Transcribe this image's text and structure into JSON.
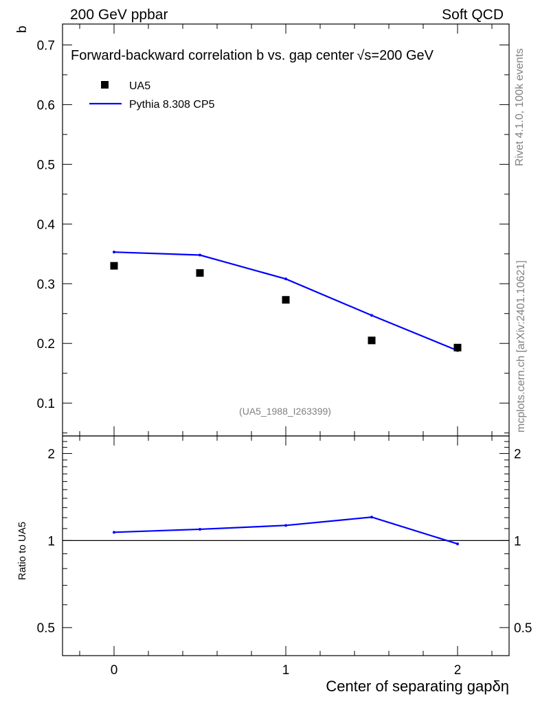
{
  "header": {
    "left": "200 GeV ppbar",
    "right": "Soft QCD"
  },
  "side_labels": {
    "rivet": "Rivet 4.1.0,  100k events",
    "mcplots": "mcplots.cern.ch [arXiv:2401.10621]"
  },
  "chart_data": [
    {
      "type": "scatter",
      "panel": "main",
      "title": "Forward-backward correlation b  vs. gap center",
      "title_extra": "√s=200 GeV",
      "ylabel": "b",
      "xlabel": "",
      "xlim": [
        -0.3,
        2.3
      ],
      "ylim": [
        0.045,
        0.735
      ],
      "yticks": [
        0.1,
        0.2,
        0.3,
        0.4,
        0.5,
        0.6,
        0.7
      ],
      "ytick_labels": [
        "0.1",
        "0.2",
        "0.3",
        "0.4",
        "0.5",
        "0.6",
        "0.7"
      ],
      "annotation": "(UA5_1988_I263399)",
      "legend_position": "top-left",
      "series": [
        {
          "name": "UA5",
          "kind": "markers",
          "color": "#000000",
          "x": [
            0,
            0.5,
            1,
            1.5,
            2
          ],
          "y": [
            0.33,
            0.318,
            0.273,
            0.205,
            0.193
          ]
        },
        {
          "name": "Pythia 8.308 CP5",
          "kind": "line",
          "color": "#0000ff",
          "x": [
            0,
            0.5,
            1,
            1.5,
            2
          ],
          "y": [
            0.353,
            0.348,
            0.308,
            0.247,
            0.188
          ]
        }
      ]
    },
    {
      "type": "line",
      "panel": "ratio",
      "ylabel": "Ratio to UA5",
      "xlabel": "Center of separating gapδη",
      "xlim": [
        -0.3,
        2.3
      ],
      "ylim": [
        0.4,
        2.3
      ],
      "yscale": "log",
      "yticks": [
        0.5,
        1,
        2
      ],
      "ytick_labels": [
        "0.5",
        "1",
        "2"
      ],
      "xticks": [
        0,
        1,
        2
      ],
      "xtick_labels": [
        "0",
        "1",
        "2"
      ],
      "reference_line": 1,
      "series": [
        {
          "name": "Pythia 8.308 CP5",
          "color": "#0000ff",
          "x": [
            0,
            0.5,
            1,
            1.5,
            2
          ],
          "y": [
            1.068,
            1.094,
            1.128,
            1.205,
            0.974
          ]
        }
      ]
    }
  ]
}
